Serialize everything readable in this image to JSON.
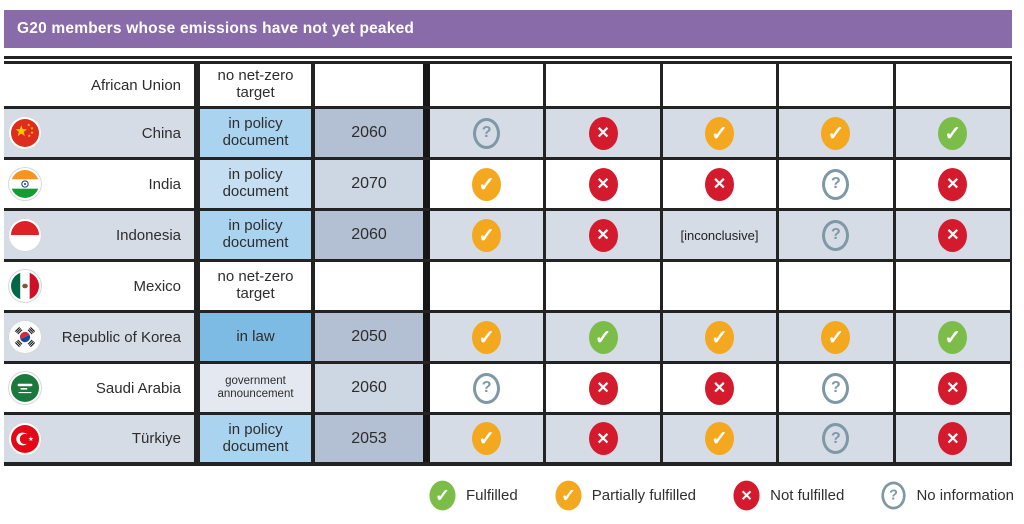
{
  "colors": {
    "header": "#886BA8",
    "row_shaded": "#D6DCE6",
    "status_policy": "#AAD3F0",
    "status_policy_light": "#C6DEF2",
    "status_law": "#7DBBE5",
    "status_announcement": "#E4E9F1",
    "year_shaded": "#B3C0D3",
    "year_light": "#CDD6E3",
    "fulfilled": "#7CBD4A",
    "partially_fulfilled": "#F3A81F",
    "not_fulfilled": "#D41A2D",
    "no_information": "#7E98A6"
  },
  "chart_data": {
    "type": "table",
    "title": "G20 members whose emissions have not yet peaked",
    "inconclusive_label": "[inconclusive]",
    "rows": [
      {
        "country": "African Union",
        "flag": "none",
        "net_zero_target_status": "no net-zero target",
        "status_type": "none",
        "target_year": "",
        "assessments": [
          "",
          "",
          "",
          "",
          ""
        ]
      },
      {
        "country": "China",
        "flag": "china",
        "net_zero_target_status": "in policy document",
        "status_type": "policy document",
        "target_year": "2060",
        "assessments": [
          "no information",
          "not fulfilled",
          "partially fulfilled",
          "partially fulfilled",
          "fulfilled"
        ]
      },
      {
        "country": "India",
        "flag": "india",
        "net_zero_target_status": "in policy document",
        "status_type": "policy document",
        "target_year": "2070",
        "assessments": [
          "partially fulfilled",
          "not fulfilled",
          "not fulfilled",
          "no information",
          "not fulfilled"
        ]
      },
      {
        "country": "Indonesia",
        "flag": "indonesia",
        "net_zero_target_status": "in policy document",
        "status_type": "policy document",
        "target_year": "2060",
        "assessments": [
          "partially fulfilled",
          "not fulfilled",
          "inconclusive",
          "no information",
          "not fulfilled"
        ]
      },
      {
        "country": "Mexico",
        "flag": "mexico",
        "net_zero_target_status": "no net-zero target",
        "status_type": "none",
        "target_year": "",
        "assessments": [
          "",
          "",
          "",
          "",
          ""
        ]
      },
      {
        "country": "Republic of Korea",
        "flag": "korea",
        "net_zero_target_status": "in law",
        "status_type": "law",
        "target_year": "2050",
        "assessments": [
          "partially fulfilled",
          "fulfilled",
          "partially fulfilled",
          "partially fulfilled",
          "fulfilled"
        ]
      },
      {
        "country": "Saudi Arabia",
        "flag": "saudi-arabia",
        "net_zero_target_status": "government announcement",
        "status_type": "government announcement",
        "target_year": "2060",
        "assessments": [
          "no information",
          "not fulfilled",
          "not fulfilled",
          "no information",
          "not fulfilled"
        ]
      },
      {
        "country": "Türkiye",
        "flag": "turkiye",
        "net_zero_target_status": "in policy document",
        "status_type": "policy document",
        "target_year": "2053",
        "assessments": [
          "partially fulfilled",
          "not fulfilled",
          "partially fulfilled",
          "no information",
          "not fulfilled"
        ]
      }
    ],
    "legend": [
      {
        "value": "fulfilled",
        "label": "Fulfilled"
      },
      {
        "value": "partially fulfilled",
        "label": "Partially fulfilled"
      },
      {
        "value": "not fulfilled",
        "label": "Not fulfilled"
      },
      {
        "value": "no information",
        "label": "No information"
      }
    ]
  }
}
